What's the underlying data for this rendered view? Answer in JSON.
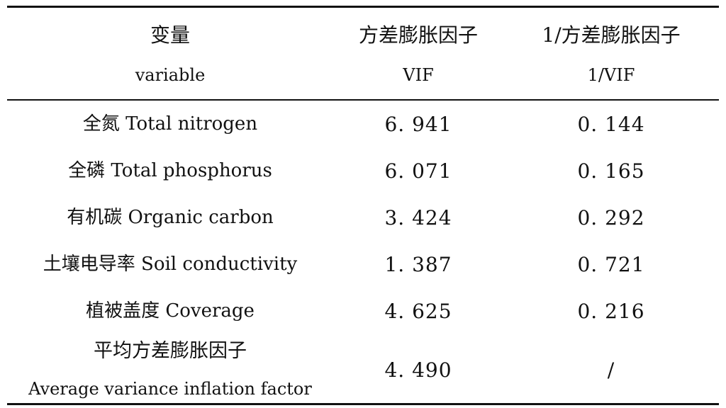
{
  "table": {
    "headers": [
      {
        "zh": "变量",
        "en": "variable"
      },
      {
        "zh": "方差膨胀因子",
        "en": "VIF"
      },
      {
        "zh": "1/方差膨胀因子",
        "en": "1/VIF"
      }
    ],
    "rows": [
      {
        "variable": "全氮 Total nitrogen",
        "vif": "6. 941",
        "inv_vif": "0. 144"
      },
      {
        "variable": "全磷 Total phosphorus",
        "vif": "6. 071",
        "inv_vif": "0. 165"
      },
      {
        "variable": "有机碳 Organic carbon",
        "vif": "3. 424",
        "inv_vif": "0. 292"
      },
      {
        "variable": "土壤电导率 Soil conductivity",
        "vif": "1. 387",
        "inv_vif": "0. 721"
      },
      {
        "variable": "植被盖度 Coverage",
        "vif": "4. 625",
        "inv_vif": "0. 216"
      }
    ],
    "summary": {
      "variable_zh": "平均方差膨胀因子",
      "variable_en": "Average variance inflation factor",
      "vif": "4. 490",
      "inv_vif": "/"
    }
  }
}
